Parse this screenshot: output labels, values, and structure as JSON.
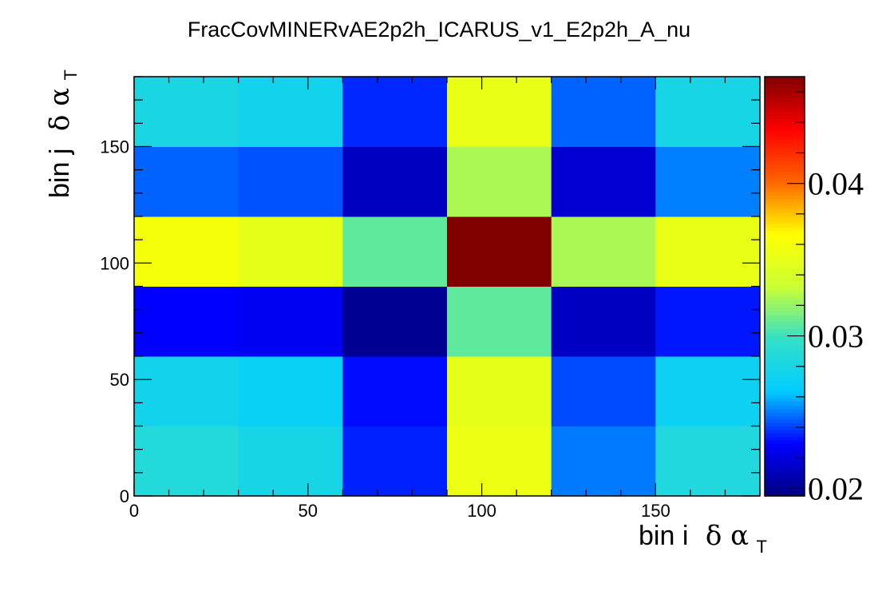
{
  "chart_data": {
    "type": "heatmap",
    "title": "FracCovMINERvAE2p2h_ICARUS_v1_E2p2h_A_nu",
    "xlabel": {
      "main": "bin i",
      "greek": "δ α",
      "sub": "T"
    },
    "ylabel": {
      "main": "bin j",
      "greek": "δ α",
      "sub": "T"
    },
    "x_edges": [
      0,
      30,
      60,
      90,
      120,
      150,
      180
    ],
    "y_edges": [
      0,
      30,
      60,
      90,
      120,
      150,
      180
    ],
    "xlim": [
      0,
      180
    ],
    "ylim": [
      0,
      180
    ],
    "x_ticks": [
      "0",
      "50",
      "100",
      "150"
    ],
    "y_ticks": [
      "0",
      "50",
      "100",
      "150"
    ],
    "values": [
      [
        0.0287,
        0.028,
        0.0235,
        0.0355,
        0.025,
        0.0285
      ],
      [
        0.0276,
        0.027,
        0.0231,
        0.035,
        0.0242,
        0.0272
      ],
      [
        0.0229,
        0.0226,
        0.02,
        0.0308,
        0.0213,
        0.0233
      ],
      [
        0.036,
        0.035,
        0.0308,
        0.047,
        0.0325,
        0.0352
      ],
      [
        0.0246,
        0.0243,
        0.0213,
        0.0325,
        0.0217,
        0.0251
      ],
      [
        0.0281,
        0.0276,
        0.0236,
        0.0352,
        0.0246,
        0.028
      ]
    ],
    "zlim": [
      0.0195,
      0.047
    ],
    "colorbar_ticks": [
      "0.02",
      "0.03",
      "0.04"
    ],
    "colormap": [
      "#000080",
      "#0000ff",
      "#00ccff",
      "#33e0c8",
      "#ccff33",
      "#ffff00",
      "#ff6600",
      "#ff0000",
      "#800000"
    ]
  }
}
